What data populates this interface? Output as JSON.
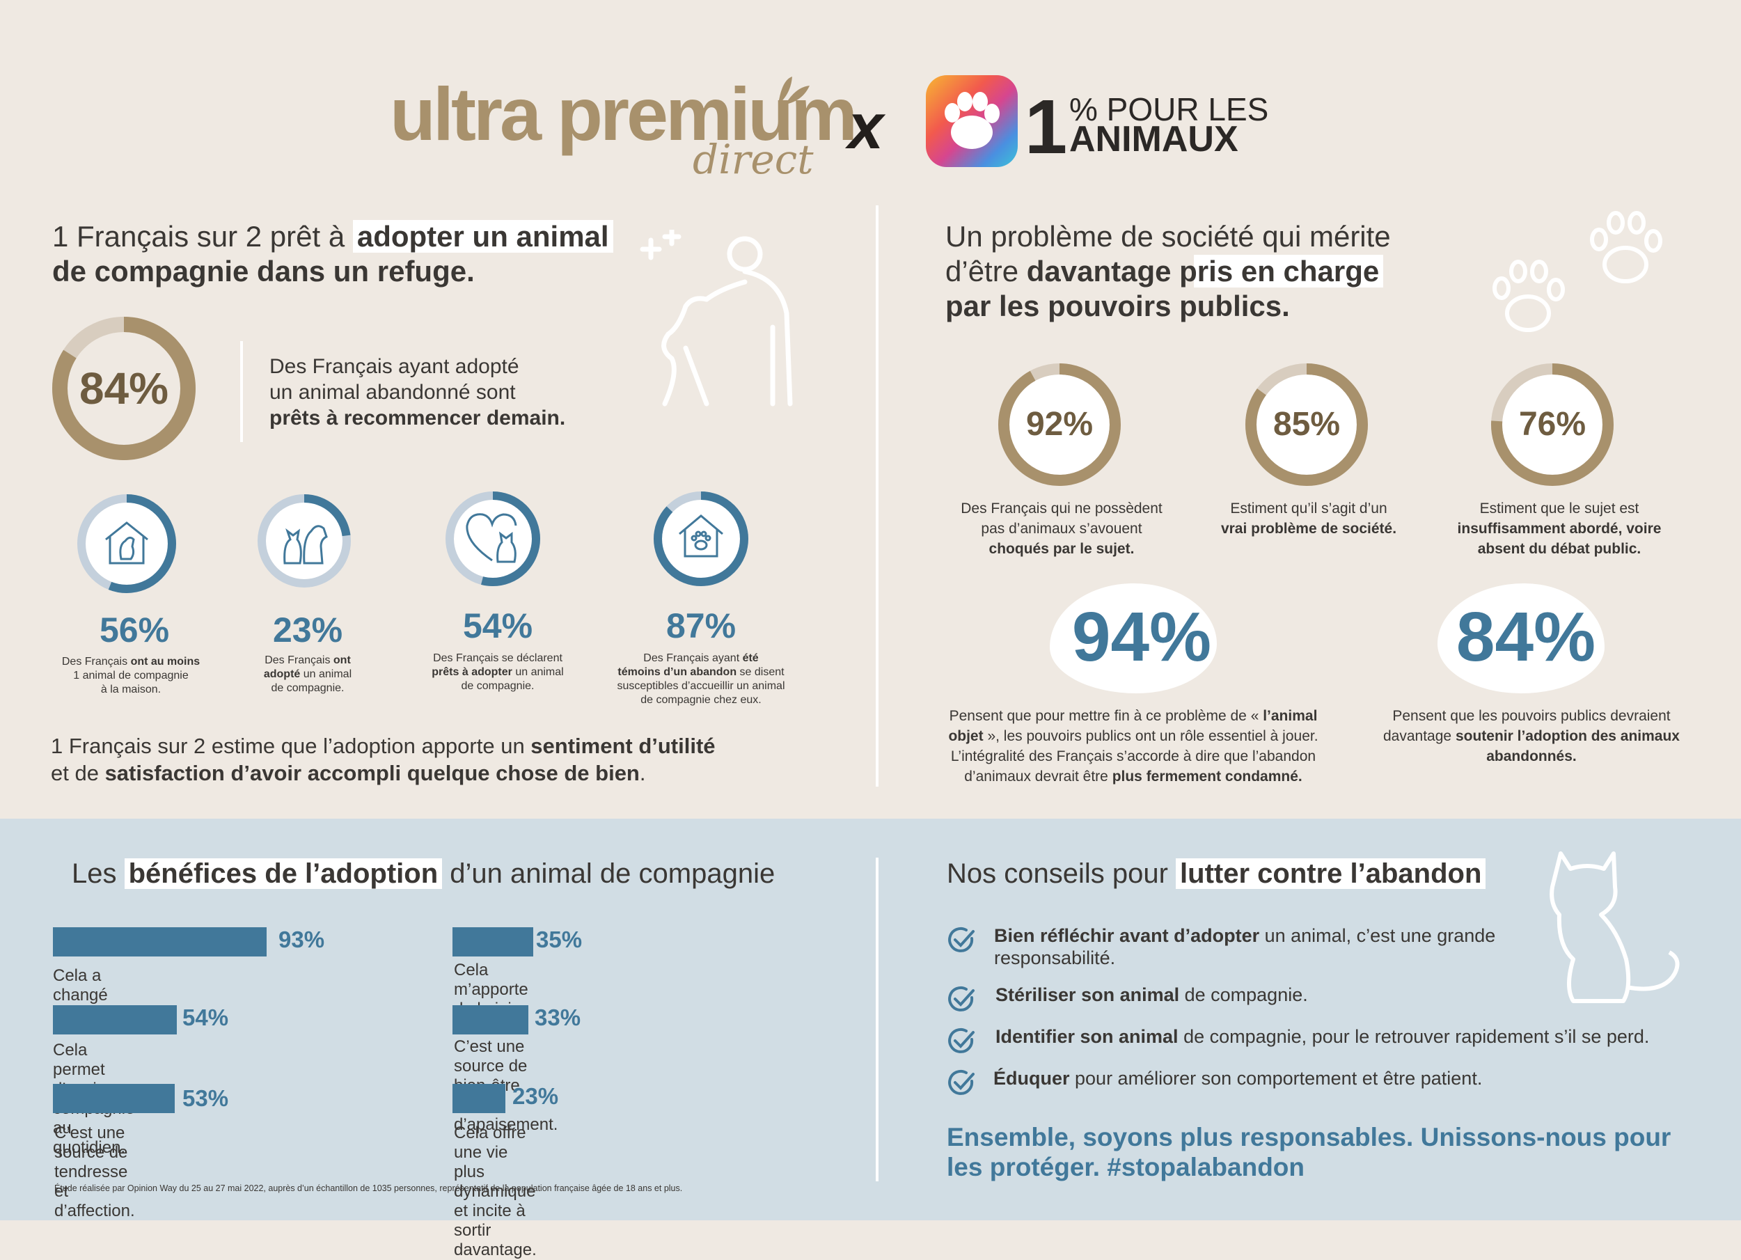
{
  "header": {
    "brand_main": "ultra premium",
    "brand_sub": "direct",
    "cross": "x",
    "partner_number": "1",
    "partner_line1": "% POUR LES",
    "partner_line2": "ANIMAUX"
  },
  "left_top": {
    "title_a": "1 Français sur 2 prêt à ",
    "title_b": "adopter un animal",
    "title_c": "de compagnie dans  un refuge.",
    "main_pct": "84%",
    "main_value": 84,
    "main_text_1": "Des Français ayant adopté",
    "main_text_2": "un animal abandonné sont",
    "main_text_3": "prêts à recommencer demain.",
    "stats": [
      {
        "pct": "56%",
        "value": 56,
        "icon": "house-dog-icon",
        "l1a": "Des Français ",
        "l1b": "ont au moins",
        "l2": "1 animal de compagnie",
        "l3": "à la maison."
      },
      {
        "pct": "23%",
        "value": 23,
        "icon": "cat-and-dog-icon",
        "l1a": "Des Français ",
        "l1b": "ont",
        "l2a": "adopté",
        "l2b": " un animal",
        "l3": "de compagnie."
      },
      {
        "pct": "54%",
        "value": 54,
        "icon": "heart-cat-icon",
        "l1": "Des Français se déclarent",
        "l2a": "prêts à adopter",
        "l2b": " un animal",
        "l3": "de compagnie."
      },
      {
        "pct": "87%",
        "value": 87,
        "icon": "house-paw-icon",
        "l1a": "Des Français ayant ",
        "l1b": "été",
        "l2a": "témoins d’un abandon",
        "l2b": " se disent",
        "l3": "susceptibles d’accueillir un animal",
        "l4": "de compagnie chez eux."
      }
    ],
    "footer_a": "1 Français sur 2 estime que l’adoption apporte un ",
    "footer_b": "sentiment d’utilité",
    "footer_c": "et de ",
    "footer_d": "satisfaction d’avoir accompli quelque chose de bien",
    "footer_e": "."
  },
  "right_top": {
    "title_1": "Un problème de société qui mérite",
    "title_2a": "d’être ",
    "title_2b": "davantage pris en charge",
    "title_3": "par les pouvoirs publics.",
    "rings": [
      {
        "pct": "92%",
        "value": 92,
        "l1": "Des Français qui ne possèdent",
        "l2": "pas d’animaux s’avouent",
        "l3": "choqués par le sujet."
      },
      {
        "pct": "85%",
        "value": 85,
        "l1": "Estiment qu’il s’agit d’un",
        "l2": "vrai problème de société.",
        "l3": ""
      },
      {
        "pct": "76%",
        "value": 76,
        "l1": "Estiment que le sujet est",
        "l2": "insuffisamment abordé, voire",
        "l3": "absent du débat public."
      }
    ],
    "big_left_pct": "94%",
    "big_left_1a": "Pensent que pour mettre fin à ce problème de « ",
    "big_left_1b": "l’animal",
    "big_left_2a": "objet",
    "big_left_2b": " », les pouvoirs publics ont un rôle essentiel à jouer.",
    "big_left_3": "L’intégralité des Français s’accorde à dire que l’abandon",
    "big_left_4a": "d’animaux devrait être ",
    "big_left_4b": "plus fermement condamné.",
    "big_right_pct": "84%",
    "big_right_1": "Pensent que les pouvoirs publics devraient",
    "big_right_2a": "davantage ",
    "big_right_2b": "soutenir l’adoption des animaux",
    "big_right_3": "abandonnés."
  },
  "benefits": {
    "title_a": "Les ",
    "title_b": "bénéfices de l’adoption",
    "title_c": " d’un animal de compagnie",
    "items": [
      {
        "pct": "93%",
        "value": 93,
        "l1": "Cela a changé ma vie.",
        "l2": ""
      },
      {
        "pct": "54%",
        "value": 54,
        "l1": "Cela permet d’avoir une compagnie",
        "l2": "au quotidien."
      },
      {
        "pct": "53%",
        "value": 53,
        "l1": "C’est une source de tendresse",
        "l2": "et d’affection."
      },
      {
        "pct": "35%",
        "value": 35,
        "l1": "Cela m’apporte de la joie et du rire.",
        "l2": ""
      },
      {
        "pct": "33%",
        "value": 33,
        "l1": "C’est une source de bien-être",
        "l2": "et d’apaisement."
      },
      {
        "pct": "23%",
        "value": 23,
        "l1": "Cela offre une vie plus dynamique",
        "l2": "et incite à sortir davantage."
      }
    ],
    "footnote": "Étude réalisée par Opinion Way du 25 au 27 mai 2022, auprès d’un échantillon de 1035 personnes, représentatif de la population française âgée de 18 ans et plus."
  },
  "advice": {
    "title_a": "Nos conseils pour ",
    "title_b": "lutter contre l’abandon",
    "tips": [
      {
        "bold": "Bien réfléchir avant d’adopter",
        "rest": " un animal, c’est une grande",
        "rest2": "responsabilité."
      },
      {
        "bold": "Stériliser son animal",
        "rest": " de compagnie.",
        "rest2": ""
      },
      {
        "bold": "Identifier son animal",
        "rest": " de compagnie, pour le retrouver rapidement s’il se perd.",
        "rest2": ""
      },
      {
        "bold": "Éduquer",
        "rest": " pour améliorer son comportement et être patient.",
        "rest2": ""
      }
    ],
    "closing_1": "Ensemble, soyons plus responsables. Unissons-nous pour",
    "closing_2": "les protéger. #stopalabandon"
  },
  "colors": {
    "beige_bg": "#efe9e2",
    "blue_band": "#d1dde4",
    "gold": "#a8916c",
    "gold_dark": "#6e5c40",
    "ring_light": "#d8cdbf",
    "blue": "#41789a",
    "blue_light": "#c4d0dc"
  }
}
